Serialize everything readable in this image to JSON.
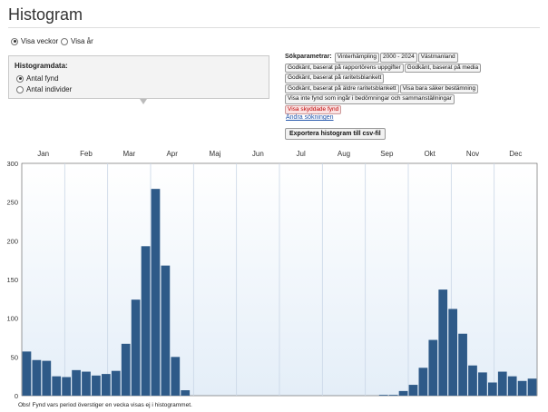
{
  "page": {
    "title": "Histogram"
  },
  "view_toggle": {
    "options": [
      {
        "label": "Visa veckor",
        "selected": true
      },
      {
        "label": "Visa år",
        "selected": false
      }
    ]
  },
  "histogram_data": {
    "title": "Histogramdata:",
    "options": [
      {
        "label": "Antal fynd",
        "selected": true
      },
      {
        "label": "Antal individer",
        "selected": false
      }
    ]
  },
  "search_params": {
    "label": "Sökparametrar:",
    "tags": [
      {
        "text": "Vinterhämpling",
        "highlight": false
      },
      {
        "text": "2000 - 2024",
        "highlight": false
      },
      {
        "text": "Västmanland",
        "highlight": false
      },
      {
        "text": "Godkänt, baserat på rapportörens uppgifter",
        "highlight": false
      },
      {
        "text": "Godkänt, baserat på media",
        "highlight": false
      },
      {
        "text": "Godkänt, baserat på raritetsblankett",
        "highlight": false
      },
      {
        "text": "Godkänt, baserat på äldre raritetsblankett",
        "highlight": false
      },
      {
        "text": "Visa bara säker bestämning",
        "highlight": false
      },
      {
        "text": "Visa inte fynd som ingår i bedömningar och sammanställningar",
        "highlight": false
      },
      {
        "text": "Visa skyddade fynd",
        "highlight": true
      }
    ],
    "change_link": "Ändra sökningen"
  },
  "export_button": "Exportera histogram till csv-fil",
  "footnote": "Obs! Fynd vars period överstiger en vecka visas ej i histogrammet.",
  "colors": {
    "bar": "#2e5a88",
    "grid": "#c9d6e6",
    "plot_bg_top": "#ffffff",
    "plot_bg_bottom": "#e4eef8"
  },
  "chart_data": {
    "type": "bar",
    "month_labels": [
      "Jan",
      "Feb",
      "Mar",
      "Apr",
      "Maj",
      "Jun",
      "Jul",
      "Aug",
      "Sep",
      "Okt",
      "Nov",
      "Dec"
    ],
    "ylim": [
      0,
      300
    ],
    "yticks": [
      0,
      50,
      100,
      150,
      200,
      250,
      300
    ],
    "weeks": [
      1,
      2,
      3,
      4,
      5,
      6,
      7,
      8,
      9,
      10,
      11,
      12,
      13,
      14,
      15,
      16,
      17,
      18,
      19,
      20,
      21,
      22,
      23,
      24,
      25,
      26,
      27,
      28,
      29,
      30,
      31,
      32,
      33,
      34,
      35,
      36,
      37,
      38,
      39,
      40,
      41,
      42,
      43,
      44,
      45,
      46,
      47,
      48,
      49,
      50,
      51,
      52
    ],
    "values": [
      57,
      46,
      45,
      25,
      24,
      33,
      31,
      26,
      28,
      32,
      67,
      124,
      193,
      267,
      168,
      50,
      7,
      0,
      0,
      0,
      0,
      0,
      0,
      0,
      0,
      0,
      0,
      0,
      0,
      0,
      0,
      0,
      0,
      0,
      0,
      0,
      1,
      1,
      6,
      14,
      36,
      72,
      137,
      112,
      80,
      39,
      30,
      17,
      31,
      25,
      19,
      22
    ]
  }
}
